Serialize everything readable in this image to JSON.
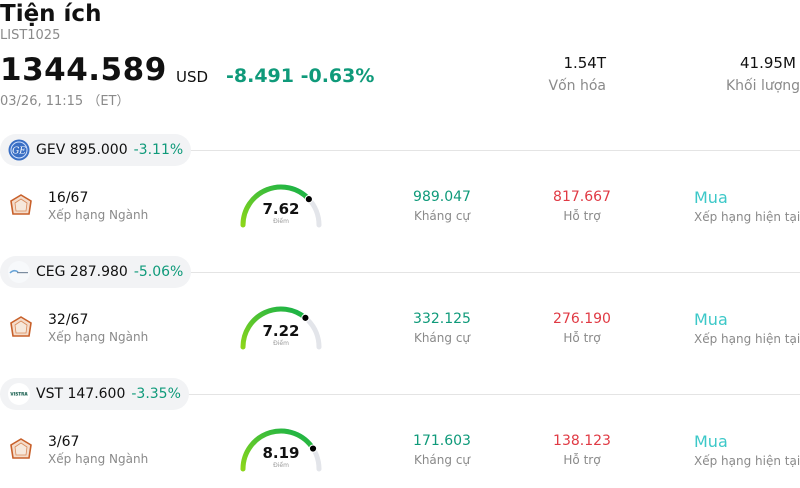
{
  "header": {
    "title": "Tiện ích",
    "code": "LIST1025",
    "price": "1344.589",
    "currency": "USD",
    "change": "-8.491 -0.63%",
    "datetime": "03/26, 11:15 （ET）",
    "market_cap_value": "1.54T",
    "market_cap_label": "Vốn hóa",
    "volume_value": "41.95M",
    "volume_label": "Khối lượng"
  },
  "colors": {
    "up_green": "#0f9a7a",
    "down_red": "#e03a44",
    "buy_teal": "#3cc8c8"
  },
  "stocks": [
    {
      "ticker_price": "GEV 895.000",
      "pct": "-3.11%",
      "logo_icon": "ge-logo-icon",
      "rank": "16/67",
      "rank_label": "Xếp hạng Ngành",
      "score": "7.62",
      "score_label": "Điểm",
      "score_fraction": 0.762,
      "resistance": "989.047",
      "resistance_label": "Kháng cự",
      "support": "817.667",
      "support_label": "Hỗ trợ",
      "rating": "Mua",
      "rating_label": "Xếp hạng hiện tại"
    },
    {
      "ticker_price": "CEG 287.980",
      "pct": "-5.06%",
      "logo_icon": "constellation-logo-icon",
      "rank": "32/67",
      "rank_label": "Xếp hạng Ngành",
      "score": "7.22",
      "score_label": "Điểm",
      "score_fraction": 0.722,
      "resistance": "332.125",
      "resistance_label": "Kháng cự",
      "support": "276.190",
      "support_label": "Hỗ trợ",
      "rating": "Mua",
      "rating_label": "Xếp hạng hiện tại"
    },
    {
      "ticker_price": "VST 147.600",
      "pct": "-3.35%",
      "logo_icon": "vistra-logo-icon",
      "logo_text": "VISTRA",
      "rank": "3/67",
      "rank_label": "Xếp hạng Ngành",
      "score": "8.19",
      "score_label": "Điểm",
      "score_fraction": 0.819,
      "resistance": "171.603",
      "resistance_label": "Kháng cự",
      "support": "138.123",
      "support_label": "Hỗ trợ",
      "rating": "Mua",
      "rating_label": "Xếp hạng hiện tại"
    }
  ]
}
